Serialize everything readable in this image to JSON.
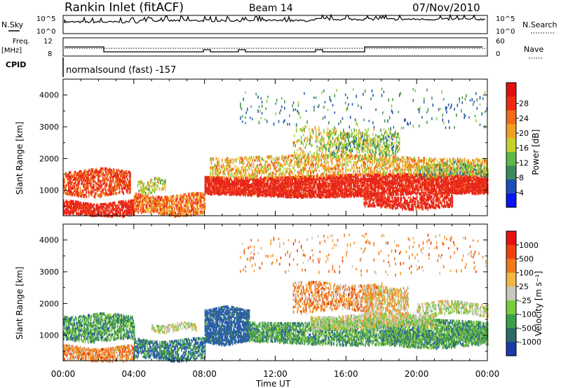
{
  "header": {
    "station": "Rankin Inlet (fitACF)",
    "beam": "Beam 14",
    "date": "07/Nov/2010"
  },
  "top_panels": {
    "nsky_label": "N.Sky",
    "nsky_ticks": [
      "10^5",
      "10^0"
    ],
    "nsearch_label": "N.Search",
    "nsearch_ticks": [
      "10^5",
      "10^0"
    ],
    "freq_label_1": "Freq.",
    "freq_label_2": "[MHz]",
    "freq_ticks": [
      "12",
      "8"
    ],
    "nave_label": "Nave",
    "nave_ticks": [
      "60",
      "0"
    ],
    "cpid_label": "CPID",
    "cpid_text": "normalsound (fast) -157"
  },
  "chart_data": [
    {
      "type": "heatmap",
      "panel": "power",
      "xlabel": "",
      "ylabel": "Slant Range [km]",
      "yticks": [
        "1000",
        "2000",
        "3000",
        "4000"
      ],
      "ylim": [
        200,
        4500
      ],
      "xlim_hours": [
        0,
        24
      ],
      "colorbar": {
        "label": "Power [dB]",
        "ticks": [
          "4",
          "8",
          "12",
          "16",
          "20",
          "24",
          "28"
        ],
        "colors": [
          "#0a14f0",
          "#1c4fb8",
          "#3a8a5c",
          "#5fb848",
          "#c8d028",
          "#f0a020",
          "#f06a18",
          "#f02a10",
          "#e01010"
        ]
      },
      "colors": [
        "#e8251a",
        "#f05a1c",
        "#f48a22",
        "#e8c63a",
        "#8ccc3c",
        "#4a9a4c",
        "#2a5ea8"
      ]
    },
    {
      "type": "heatmap",
      "panel": "velocity",
      "xlabel": "Time UT",
      "ylabel": "Slant Range [km]",
      "yticks": [
        "1000",
        "2000",
        "3000",
        "4000"
      ],
      "ylim": [
        200,
        4500
      ],
      "xticks": [
        "00:00",
        "04:00",
        "08:00",
        "12:00",
        "16:00",
        "20:00",
        "00:00"
      ],
      "colorbar": {
        "label": "Velocity [m s⁻¹]",
        "ticks": [
          "1000",
          "500",
          "100",
          "25",
          "-25",
          "-100",
          "-500",
          "-1000"
        ],
        "colors": [
          "#1a3aa8",
          "#2a6a68",
          "#3aa048",
          "#7acc3a",
          "#c8c8c0",
          "#f0b840",
          "#f07818",
          "#f04010",
          "#e81010"
        ]
      },
      "colors": [
        "#2a5ea8",
        "#3c8a4c",
        "#5cb84a",
        "#9ad04a",
        "#c8c8c0",
        "#f0a030",
        "#f07820",
        "#e84010"
      ]
    }
  ]
}
